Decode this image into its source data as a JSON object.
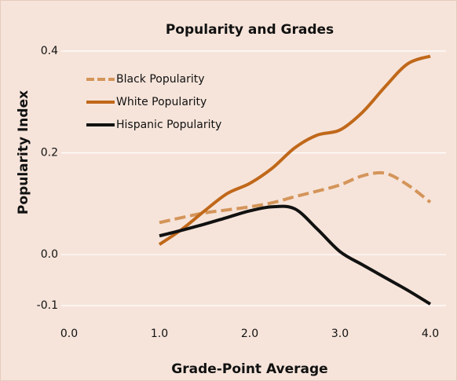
{
  "chart_data": {
    "type": "line",
    "title": "Popularity and Grades",
    "x_label": "Grade-Point Average",
    "y_label": "Popularity Index",
    "x": [
      1,
      1.25,
      1.5,
      1.75,
      2,
      2.25,
      2.5,
      2.75,
      3,
      3.25,
      3.5,
      3.75,
      4
    ],
    "series": [
      {
        "name": "Black Popularity",
        "color": "#d4955a",
        "line_style": "dashed",
        "values": [
          0.063,
          0.073,
          0.082,
          0.088,
          0.094,
          0.102,
          0.114,
          0.125,
          0.137,
          0.155,
          0.16,
          0.137,
          0.103
        ]
      },
      {
        "name": "White Popularity",
        "color": "#c0681a",
        "line_style": "solid",
        "values": [
          0.02,
          0.05,
          0.086,
          0.12,
          0.14,
          0.17,
          0.21,
          0.235,
          0.245,
          0.28,
          0.33,
          0.375,
          0.39
        ]
      },
      {
        "name": "Hispanic Popularity",
        "color": "#111111",
        "line_style": "solid",
        "values": [
          0.037,
          0.048,
          0.06,
          0.073,
          0.086,
          0.094,
          0.09,
          0.05,
          0.006,
          -0.02,
          -0.045,
          -0.07,
          -0.097
        ]
      }
    ],
    "xlim": [
      0,
      4
    ],
    "xticks": [
      {
        "value": 0,
        "label": "0.0"
      },
      {
        "value": 1,
        "label": "1.0"
      },
      {
        "value": 2,
        "label": "2.0"
      },
      {
        "value": 3,
        "label": "3.0"
      },
      {
        "value": 4,
        "label": "4.0"
      }
    ],
    "ylim": [
      -0.1,
      0.4
    ],
    "yticks": [
      -0.1,
      {
        "value": 0,
        "label": "0.0"
      },
      0.2,
      0.4
    ],
    "grid": true,
    "legend": "upper-left"
  }
}
